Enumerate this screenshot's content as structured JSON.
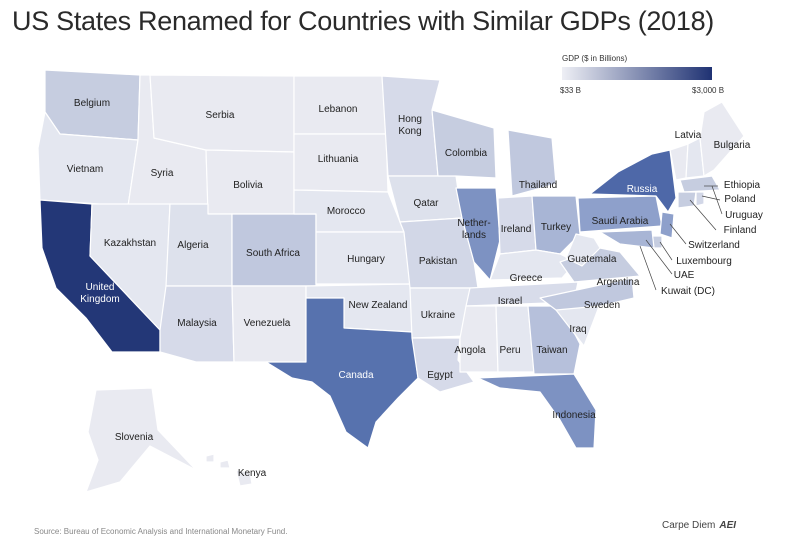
{
  "title": "US States Renamed for Countries with Similar GDPs (2018)",
  "legend": {
    "title": "GDP ($ in Billions)",
    "min_label": "$33 B",
    "max_label": "$3,000 B",
    "color_low": "#eeeff5",
    "color_high": "#1f3273"
  },
  "source": "Source: Bureau of Economic Analysis and International Monetary Fund.",
  "credit": {
    "name": "Carpe Diem",
    "logo": "AEI"
  },
  "labels": {
    "washington": "Belgium",
    "oregon": "Vietnam",
    "california_1": "United",
    "california_2": "Kingdom",
    "idaho": "Syria",
    "nevada": "Kazakhstan",
    "montana": "Serbia",
    "wyoming": "Bolivia",
    "utah": "Algeria",
    "arizona": "Malaysia",
    "colorado": "South Africa",
    "new_mexico": "Venezuela",
    "north_dakota": "Lebanon",
    "south_dakota": "Lithuania",
    "nebraska": "Morocco",
    "kansas": "Hungary",
    "oklahoma": "New Zealand",
    "texas": "Canada",
    "minnesota_1": "Hong",
    "minnesota_2": "Kong",
    "iowa": "Qatar",
    "missouri": "Pakistan",
    "arkansas": "Ukraine",
    "louisiana": "Egypt",
    "wisconsin": "Colombia",
    "illinois_1": "Nether-",
    "illinois_2": "lands",
    "michigan": "Thailand",
    "indiana": "Ireland",
    "ohio": "Turkey",
    "kentucky": "Greece",
    "tennessee": "Israel",
    "mississippi": "Angola",
    "alabama": "Peru",
    "georgia": "Taiwan",
    "florida": "Indonesia",
    "south_carolina": "Iraq",
    "north_carolina": "Sweden",
    "virginia": "Argentina",
    "west_virginia": "Guatemala",
    "pennsylvania": "Saudi Arabia",
    "new_york": "Russia",
    "vermont": "Latvia",
    "maine": "Bulgaria",
    "new_hampshire": "Ethiopia",
    "rhode_island": "Poland",
    "massachusetts": "Uruguay",
    "connecticut": "Finland",
    "new_jersey": "Switzerland",
    "delaware": "Luxembourg",
    "maryland": "UAE",
    "dc": "Kuwait (DC)",
    "alaska": "Slovenia",
    "hawaii": "Kenya"
  },
  "state_colors": {
    "very_light": "#e9eaf1",
    "light": "#d4d8e8",
    "light_medium": "#b9c2db",
    "medium": "#97a6cb",
    "medium_dark": "#6d84ba",
    "texas": "#5672ad",
    "new_york": "#4d67a8",
    "california": "#1f3273"
  }
}
